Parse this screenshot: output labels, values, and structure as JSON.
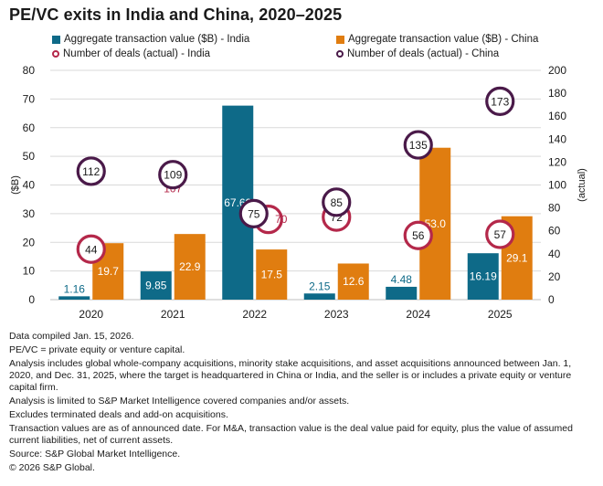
{
  "title": "PE/VC exits in India and China, 2020–2025",
  "legend": {
    "india_value": "Aggregate transaction value ($B) - India",
    "china_value": "Aggregate transaction value ($B) - China",
    "india_deals": "Number of deals (actual) - India",
    "china_deals": "Number of deals (actual) - China"
  },
  "colors": {
    "india_bar": "#0e6a88",
    "china_bar": "#e07d10",
    "india_ring": "#b4284a",
    "china_ring": "#4a1a49",
    "grid": "#d9d9d9"
  },
  "chart_data": {
    "type": "bar",
    "title": "PE/VC exits in India and China, 2020–2025",
    "categories": [
      "2020",
      "2021",
      "2022",
      "2023",
      "2024",
      "2025"
    ],
    "ylabel": "($B)",
    "y2label": "(actual)",
    "ylim": [
      0,
      80
    ],
    "yticks": [
      0,
      10,
      20,
      30,
      40,
      50,
      60,
      70,
      80
    ],
    "y2lim": [
      0,
      200
    ],
    "y2ticks": [
      0,
      20,
      40,
      60,
      80,
      100,
      120,
      140,
      160,
      180,
      200
    ],
    "series": [
      {
        "name": "Aggregate transaction value ($B) - India",
        "type": "bar",
        "axis": "left",
        "values": [
          1.16,
          9.85,
          67.69,
          2.15,
          4.48,
          16.19
        ],
        "labels": [
          "1.16",
          "9.85",
          "67.69",
          "2.15",
          "4.48",
          "16.19"
        ]
      },
      {
        "name": "Aggregate transaction value ($B) - China",
        "type": "bar",
        "axis": "left",
        "values": [
          19.7,
          22.9,
          17.5,
          12.6,
          53.0,
          29.1
        ],
        "labels": [
          "19.7",
          "22.9",
          "17.5",
          "12.6",
          "53.0",
          "29.1"
        ]
      },
      {
        "name": "Number of deals (actual) - India",
        "type": "scatter",
        "axis": "right",
        "values": [
          44,
          107,
          70,
          72,
          56,
          57
        ],
        "labels": [
          "44",
          "107",
          "70",
          "72",
          "56",
          "57"
        ]
      },
      {
        "name": "Number of deals (actual) - China",
        "type": "scatter",
        "axis": "right",
        "values": [
          112,
          109,
          75,
          85,
          135,
          173
        ],
        "labels": [
          "112",
          "109",
          "75",
          "85",
          "135",
          "173"
        ]
      }
    ]
  },
  "notes": [
    "Data compiled Jan. 15, 2026.",
    "PE/VC = private equity or venture capital.",
    "Analysis includes global whole-company acquisitions, minority stake acquisitions, and asset acquisitions announced between Jan. 1, 2020, and Dec. 31, 2025, where the target is headquartered in China or India, and the seller is or includes a private equity or venture capital firm.",
    "Analysis is limited to S&P Market Intelligence covered companies and/or assets.",
    "Excludes terminated deals and add-on acquisitions.",
    "Transaction values are as of announced date. For M&A, transaction value is the deal value paid for equity, plus the value of assumed current liabilities, net of current assets.",
    "Source: S&P Global Market Intelligence.",
    "© 2026 S&P Global."
  ]
}
